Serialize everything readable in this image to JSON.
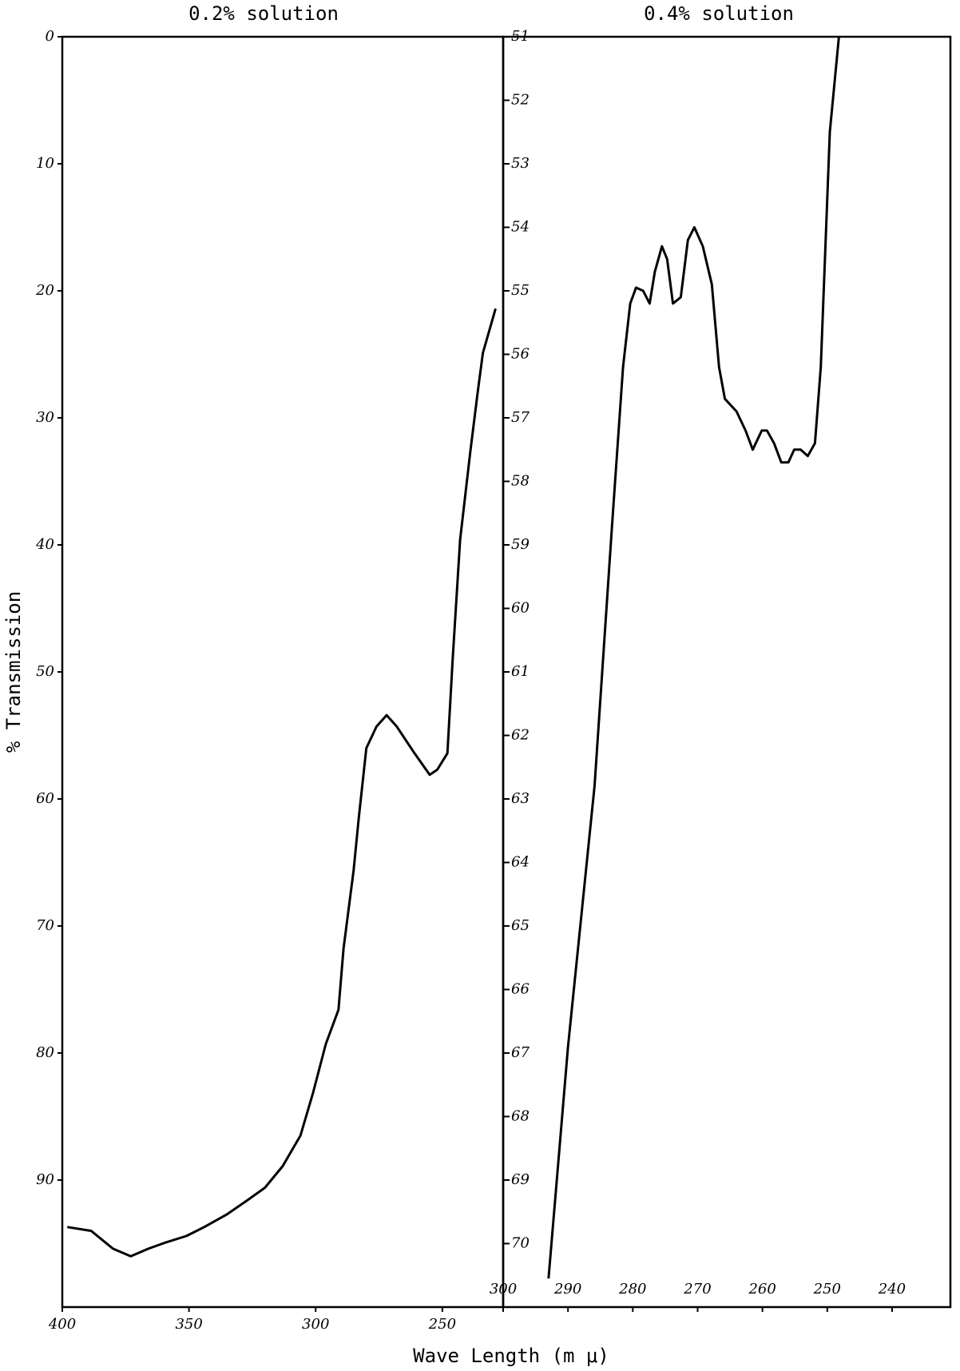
{
  "chart_data": [
    {
      "type": "line",
      "title": "0.2% solution",
      "y_label": "% Transmission",
      "x_label": "Wave Length (m μ)",
      "color": "#000000",
      "y_inverted": true,
      "xlim": [
        400,
        226
      ],
      "xticks": [
        400,
        350,
        300,
        250
      ],
      "ylim": [
        0,
        100
      ],
      "yticks": [
        0,
        10,
        20,
        30,
        40,
        50,
        60,
        70,
        80,
        90
      ],
      "x": [
        398,
        388.6,
        380,
        373,
        366,
        359,
        351,
        344,
        335,
        327,
        320,
        313,
        306,
        301,
        296,
        291,
        289,
        285,
        283,
        280,
        276,
        272,
        268,
        261,
        255,
        252,
        248,
        246,
        243,
        239,
        236,
        234,
        229
      ],
      "values": [
        93.7,
        94.0,
        95.4,
        96.0,
        95.4,
        94.9,
        94.4,
        93.7,
        92.7,
        91.6,
        90.6,
        88.9,
        86.5,
        83.1,
        79.3,
        76.6,
        71.8,
        65.6,
        61.5,
        56.0,
        54.3,
        53.4,
        54.3,
        56.4,
        58.1,
        57.7,
        56.4,
        49.2,
        39.6,
        32.7,
        27.9,
        24.9,
        21.4
      ]
    },
    {
      "type": "line",
      "title": "0.4% solution",
      "color": "#000000",
      "y_inverted": true,
      "xlim": [
        300,
        231
      ],
      "xticks": [
        300,
        290,
        280,
        270,
        260,
        250,
        240
      ],
      "ylim": [
        51,
        71
      ],
      "yticks": [
        51,
        52,
        53,
        54,
        55,
        56,
        57,
        58,
        59,
        60,
        61,
        62,
        63,
        64,
        65,
        66,
        67,
        68,
        69,
        70
      ],
      "x": [
        293.0,
        290,
        285.9,
        283.2,
        281.5,
        280.4,
        279.5,
        278.4,
        277.4,
        276.6,
        275.5,
        274.7,
        273.8,
        272.6,
        271.5,
        270.5,
        269.2,
        267.8,
        266.7,
        265.8,
        264.0,
        262.6,
        261.5,
        260.1,
        259.3,
        258.2,
        257.1,
        256.0,
        255.1,
        254.1,
        253.0,
        251.9,
        251.0,
        249.6,
        248.2
      ],
      "values": [
        70.55,
        66.9,
        62.8,
        58.7,
        56.2,
        55.2,
        54.95,
        55.0,
        55.2,
        54.7,
        54.3,
        54.5,
        55.2,
        55.1,
        54.2,
        54.0,
        54.3,
        54.9,
        56.2,
        56.7,
        56.9,
        57.2,
        57.5,
        57.2,
        57.2,
        57.4,
        57.7,
        57.7,
        57.5,
        57.5,
        57.6,
        57.4,
        56.2,
        52.5,
        51.0
      ]
    }
  ]
}
